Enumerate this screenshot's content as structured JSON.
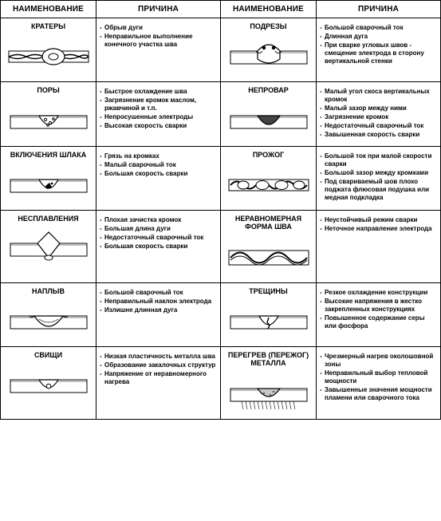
{
  "headers": {
    "name": "НАИМЕНОВАНИЕ",
    "cause": "ПРИЧИНА"
  },
  "rows": [
    {
      "left": {
        "title": "КРАТЕРЫ",
        "svg": "crater",
        "causes": [
          "Обрыв дуги",
          "Неправильное выполнение конечного участка шва"
        ]
      },
      "right": {
        "title": "ПОДРЕЗЫ",
        "svg": "undercut",
        "causes": [
          "Большой сварочный ток",
          "Длинная дуга",
          "При сварке угловых швов - смещение электрода в сторону вертикальной стенки"
        ]
      }
    },
    {
      "left": {
        "title": "ПОРЫ",
        "svg": "pores",
        "causes": [
          "Быстрое охлаждение шва",
          "Загрязнение кромок маслом, ржавчиной и т.п.",
          "Непросушенные электроды",
          "Высокая скорость сварки"
        ]
      },
      "right": {
        "title": "НЕПРОВАР",
        "svg": "nofusion",
        "causes": [
          "Малый угол скоса вертикальных кромок",
          "Малый зазор между ними",
          "Загрязнение кромок",
          "Недостаточный сварочный ток",
          "Завышенная скорость сварки"
        ]
      }
    },
    {
      "left": {
        "title": "ВКЛЮЧЕНИЯ ШЛАКА",
        "svg": "slag",
        "causes": [
          "Грязь на кромках",
          "Малый сварочный ток",
          "Большая скорость сварки"
        ]
      },
      "right": {
        "title": "ПРОЖОГ",
        "svg": "burn",
        "causes": [
          "Большой ток при малой скорости сварки",
          "Большой зазор между кромками",
          "Под свариваемый шов плохо поджата флюсовая подушка или медная подкладка"
        ]
      }
    },
    {
      "left": {
        "title": "НЕСПЛАВЛЕНИЯ",
        "svg": "nomelt",
        "causes": [
          "Плохая зачистка кромок",
          "Большая длина дуги",
          "Недостаточный сварочный ток",
          "Большая скорость сварки"
        ]
      },
      "right": {
        "title": "НЕРАВНОМЕРНАЯ\nФОРМА ШВА",
        "svg": "uneven",
        "causes": [
          "Неустойчивый режим сварки",
          "Неточное направление электрода"
        ]
      }
    },
    {
      "left": {
        "title": "НАПЛЫВ",
        "svg": "overlap",
        "causes": [
          "Большой сварочный ток",
          "Неправильный наклон электрода",
          "Излишне длинная дуга"
        ]
      },
      "right": {
        "title": "ТРЕЩИНЫ",
        "svg": "crack",
        "causes": [
          "Резкое охлаждение конструкции",
          "Высокие напряжения в жестко закрепленных конструкциях",
          "Повышенное содержание серы или фосфора"
        ]
      }
    },
    {
      "left": {
        "title": "СВИЩИ",
        "svg": "fistula",
        "causes": [
          "Низкая пластичность металла шва",
          "Образование закалочных структур",
          "Напряжение от неравномерного нагрева"
        ]
      },
      "right": {
        "title": "ПЕРЕГРЕВ (ПЕРЕЖОГ)\nМЕТАЛЛА",
        "svg": "overheat",
        "causes": [
          "Чрезмерный нагрев околошовной зоны",
          "Неправильный выбор тепловой мощности",
          "Завышенные значения мощности пламени или сварочного тока"
        ]
      }
    }
  ],
  "style": {
    "stroke": "#000000",
    "fill": "#ffffff",
    "hatch": "#555555",
    "shade": "#bcbcbc"
  }
}
